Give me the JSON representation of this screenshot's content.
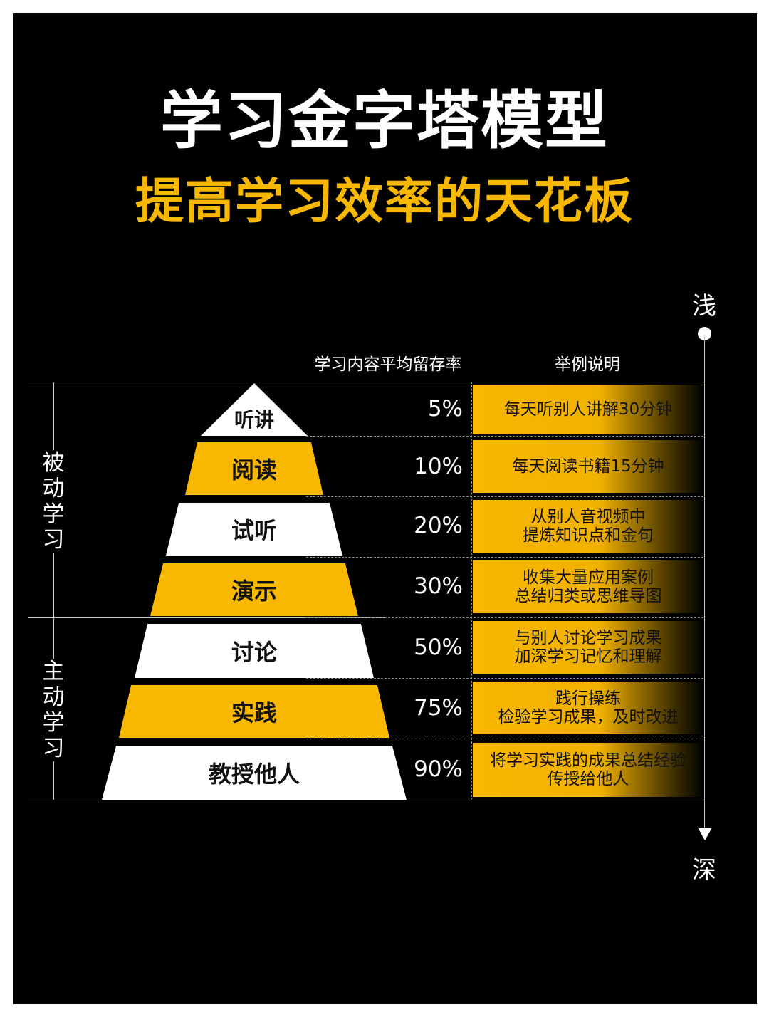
{
  "title": "学习金字塔模型",
  "subtitle": "提高学习效率的天花板",
  "axis": {
    "top": "浅",
    "bottom": "深"
  },
  "headers": {
    "retention": "学习内容平均留存率",
    "example": "举例说明"
  },
  "groups": {
    "passive": "被动学习",
    "active": "主动学习"
  },
  "colors": {
    "background": "#000000",
    "accent": "#f8b700",
    "light_tier": "#ffffff",
    "text": "#ffffff"
  },
  "tiers": [
    {
      "label": "听讲",
      "rate": "5%",
      "example_lines": [
        "每天听别人讲解30分钟"
      ]
    },
    {
      "label": "阅读",
      "rate": "10%",
      "example_lines": [
        "每天阅读书籍15分钟"
      ]
    },
    {
      "label": "试听",
      "rate": "20%",
      "example_lines": [
        "从别人音视频中",
        "提炼知识点和金句"
      ]
    },
    {
      "label": "演示",
      "rate": "30%",
      "example_lines": [
        "收集大量应用案例",
        "总结归类或思维导图"
      ]
    },
    {
      "label": "讨论",
      "rate": "50%",
      "example_lines": [
        "与别人讨论学习成果",
        "加深学习记忆和理解"
      ]
    },
    {
      "label": "实践",
      "rate": "75%",
      "example_lines": [
        "践行操练",
        "检验学习成果，及时改进"
      ]
    },
    {
      "label": "教授他人",
      "rate": "90%",
      "example_lines": [
        "将学习实践的成果总结经验",
        "传授给他人"
      ]
    }
  ],
  "chart_data": {
    "type": "table",
    "columns": [
      "学习内容平均留存率",
      "举例说明"
    ],
    "categories": [
      "听讲",
      "阅读",
      "试听",
      "演示",
      "讨论",
      "实践",
      "教授他人"
    ],
    "values": [
      5,
      10,
      20,
      30,
      50,
      75,
      90
    ],
    "groups": [
      {
        "name": "被动学习",
        "members": [
          "听讲",
          "阅读",
          "试听",
          "演示"
        ]
      },
      {
        "name": "主动学习",
        "members": [
          "讨论",
          "实践",
          "教授他人"
        ]
      }
    ]
  }
}
